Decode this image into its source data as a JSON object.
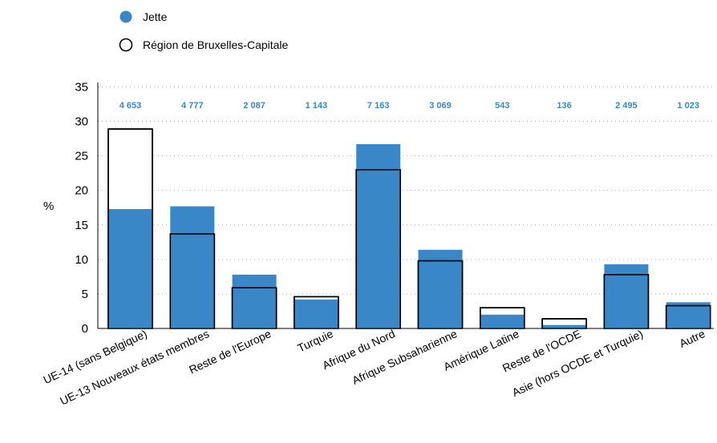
{
  "chart_data": {
    "type": "bar",
    "ylabel": "%",
    "ylim": [
      0,
      35
    ],
    "yticks": [
      0,
      5,
      10,
      15,
      20,
      25,
      30,
      35
    ],
    "grid": "horizontal-dotted",
    "legend_placement": "top-left",
    "categories": [
      "UE-14 (sans Belgique)",
      "UE-13 Nouveaux états membres",
      "Reste de l'Europe",
      "Turquie",
      "Afrique du Nord",
      "Afrique Subsaharienne",
      "Amérique Latine",
      "Reste de l'OCDE",
      "Asie (hors OCDE et Turquie)",
      "Autre"
    ],
    "counts": [
      "4 653",
      "4 777",
      "2 087",
      "1 143",
      "7 163",
      "3 069",
      "543",
      "136",
      "2 495",
      "1 023"
    ],
    "series": [
      {
        "name": "Jette",
        "style": "filled",
        "color": "#3a87c8",
        "values": [
          17.3,
          17.7,
          7.8,
          4.2,
          26.7,
          11.4,
          2.0,
          0.5,
          9.3,
          3.8
        ]
      },
      {
        "name": "Région de Bruxelles-Capitale",
        "style": "outline",
        "color": "#000000",
        "values": [
          28.9,
          13.7,
          5.9,
          4.6,
          23.0,
          9.8,
          3.0,
          1.4,
          7.8,
          3.3
        ]
      }
    ]
  }
}
